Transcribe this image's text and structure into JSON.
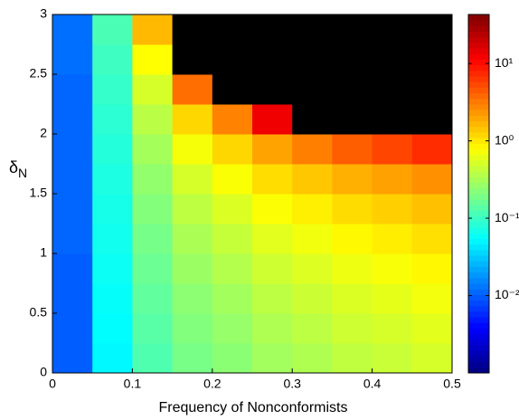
{
  "chart_data": {
    "type": "heatmap",
    "xlabel": "Frequency of Nonconformists",
    "ylabel": {
      "symbol": "δ",
      "subscript": "N"
    },
    "xlim": [
      0,
      0.5
    ],
    "ylim": [
      0,
      3
    ],
    "xticks": [
      0,
      0.1,
      0.2,
      0.3,
      0.4,
      0.5
    ],
    "yticks": [
      0,
      0.5,
      1,
      1.5,
      2,
      2.5,
      3
    ],
    "colorbar_lim": [
      0.001,
      43
    ],
    "colorbar_ticks": [
      {
        "value": 0.01,
        "label": "10⁻²"
      },
      {
        "value": 0.1,
        "label": "10⁻¹"
      },
      {
        "value": 1,
        "label": "10⁰"
      },
      {
        "value": 10,
        "label": "10¹"
      }
    ],
    "color_scale": "log",
    "colormap": "jet",
    "null_color": "#000000",
    "x": [
      0.025,
      0.075,
      0.125,
      0.175,
      0.225,
      0.275,
      0.325,
      0.375,
      0.425,
      0.475
    ],
    "y": [
      0.125,
      0.375,
      0.625,
      0.875,
      1.125,
      1.375,
      1.625,
      1.875,
      2.125,
      2.375,
      2.625,
      2.875
    ],
    "z": [
      [
        0.01,
        0.051,
        0.125,
        0.189,
        0.233,
        0.297,
        0.34,
        0.405,
        0.448,
        0.512
      ],
      [
        0.01,
        0.054,
        0.137,
        0.212,
        0.263,
        0.339,
        0.39,
        0.465,
        0.515,
        0.59
      ],
      [
        0.01,
        0.057,
        0.15,
        0.24,
        0.302,
        0.393,
        0.456,
        0.545,
        0.607,
        0.697
      ],
      [
        0.01,
        0.061,
        0.167,
        0.277,
        0.355,
        0.469,
        0.549,
        0.661,
        0.738,
        0.85
      ],
      [
        0.011,
        0.065,
        0.188,
        0.327,
        0.43,
        0.581,
        0.69,
        0.837,
        0.942,
        1.09
      ],
      [
        0.011,
        0.069,
        0.216,
        0.4,
        0.547,
        0.765,
        0.928,
        1.14,
        1.3,
        1.52
      ],
      [
        0.011,
        0.074,
        0.252,
        0.514,
        0.751,
        1.12,
        1.42,
        1.8,
        2.1,
        2.51
      ],
      [
        0.011,
        0.08,
        0.304,
        0.72,
        1.19,
        2.06,
        2.99,
        4.22,
        5.53,
        7.16
      ],
      [
        0.011,
        0.087,
        0.381,
        1.2,
        2.89,
        13.3,
        null,
        null,
        null,
        null
      ],
      [
        0.011,
        0.095,
        0.513,
        3.6,
        null,
        null,
        null,
        null,
        null,
        null
      ],
      [
        0.012,
        0.105,
        0.784,
        null,
        null,
        null,
        null,
        null,
        null,
        null
      ],
      [
        0.012,
        0.118,
        1.64,
        null,
        null,
        null,
        null,
        null,
        null,
        null
      ]
    ]
  }
}
